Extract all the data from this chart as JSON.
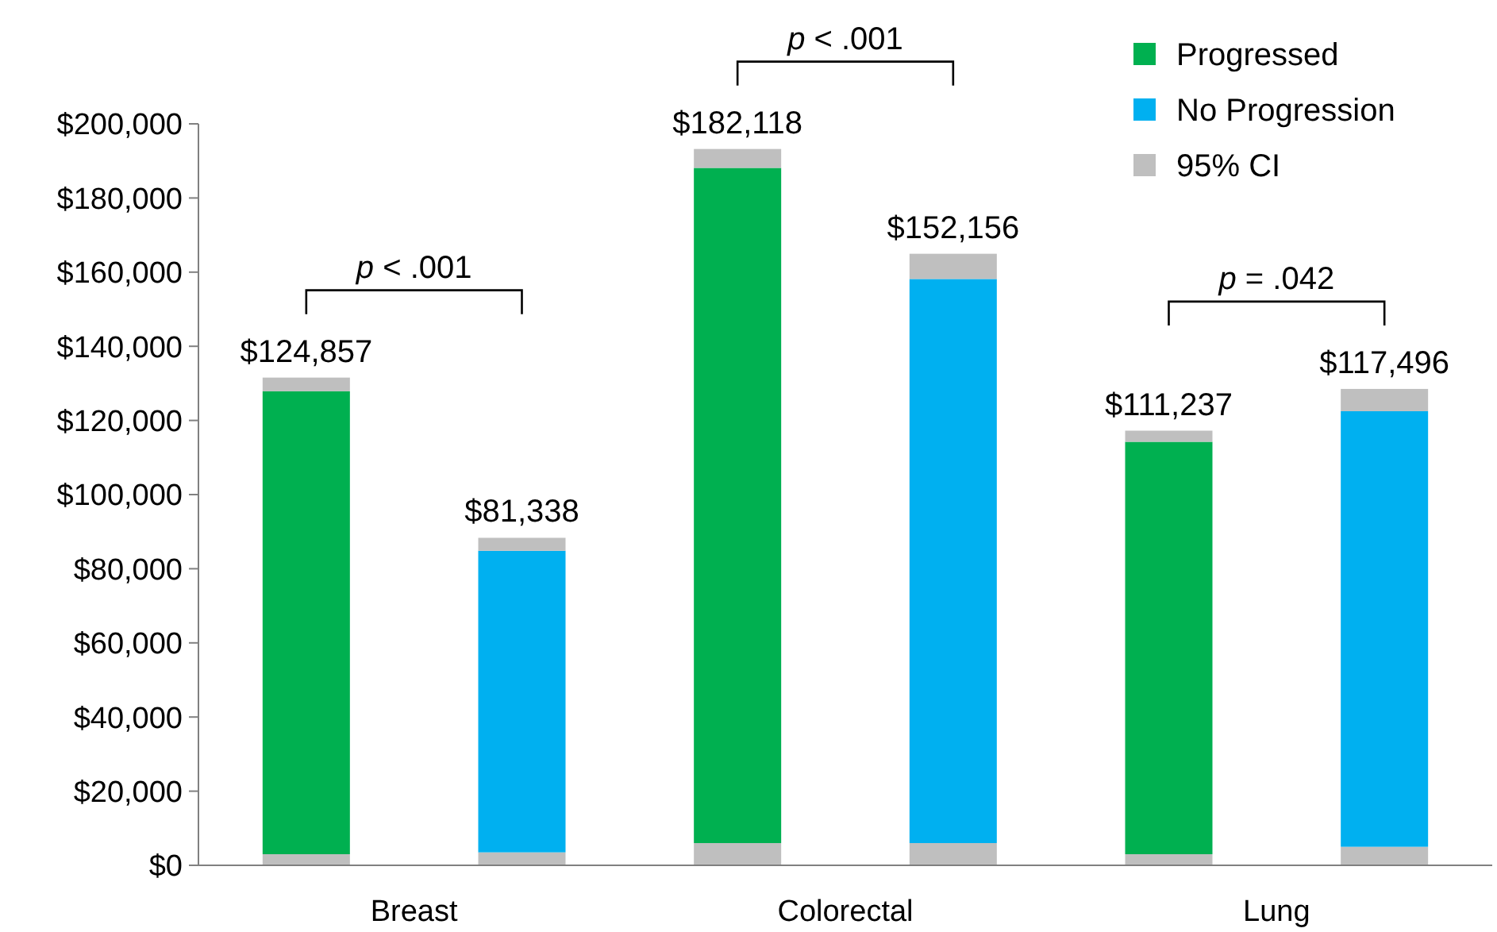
{
  "chart_data": {
    "type": "bar",
    "stacked": true,
    "categories": [
      "Breast",
      null,
      "Colorectal",
      null,
      "Lung",
      null
    ],
    "ylim": [
      0,
      200000
    ],
    "yticks": [
      {
        "value": 0,
        "label": "$0"
      },
      {
        "value": 20000,
        "label": "$20,000"
      },
      {
        "value": 40000,
        "label": "$40,000"
      },
      {
        "value": 60000,
        "label": "$60,000"
      },
      {
        "value": 80000,
        "label": "$80,000"
      },
      {
        "value": 100000,
        "label": "$100,000"
      },
      {
        "value": 120000,
        "label": "$120,000"
      },
      {
        "value": 140000,
        "label": "$140,000"
      },
      {
        "value": 160000,
        "label": "$160,000"
      },
      {
        "value": 180000,
        "label": "$180,000"
      },
      {
        "value": 200000,
        "label": "$200,000"
      }
    ],
    "series": [
      {
        "color": "#bfbfbf",
        "values": [
          3000,
          3500,
          6000,
          6000,
          3000,
          5000
        ]
      },
      {
        "name": "Progressed",
        "color": "#00b050",
        "values": [
          124857,
          null,
          182118,
          null,
          111237,
          null
        ],
        "value_labels": [
          "$124,857",
          null,
          "$182,118",
          null,
          "$111,237",
          null
        ]
      },
      {
        "name": "No Progression",
        "color": "#00b0f0",
        "values": [
          null,
          81338,
          null,
          152156,
          null,
          117496
        ],
        "value_labels": [
          null,
          "$81,338",
          null,
          "$152,156",
          null,
          "$117,496"
        ]
      },
      {
        "name": "95% CI",
        "color": "#bfbfbf",
        "values": [
          3700,
          3500,
          5100,
          6800,
          3000,
          6000
        ]
      }
    ],
    "annotations": [
      "p < .001",
      "p < .001",
      "p = .042"
    ],
    "legend": "top right",
    "grid": false
  }
}
